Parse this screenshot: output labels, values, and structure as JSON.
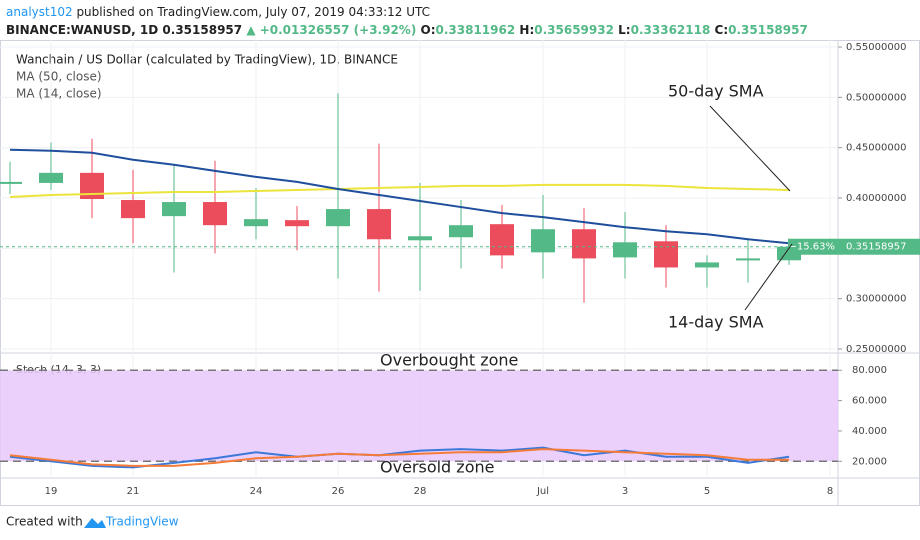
{
  "header": {
    "author": "analyst102",
    "published": "published on TradingView.com, July 07, 2019 04:33:12 UTC",
    "symbol": "BINANCE:WANUSD, 1D",
    "last": "0.35158957",
    "change": "▲ +0.01326557 (+3.92%)",
    "ohlc": [
      {
        "label": "O:",
        "value": "0.33811962"
      },
      {
        "label": "H:",
        "value": "0.35659932"
      },
      {
        "label": "L:",
        "value": "0.33362118"
      },
      {
        "label": "C:",
        "value": "0.35158957"
      }
    ]
  },
  "chart_data": [
    {
      "type": "candlestick",
      "title": "Wanchain / US Dollar (calculated by TradingView), 1D, BINANCE",
      "categories": [
        null,
        "19",
        null,
        "21",
        null,
        null,
        "24",
        null,
        "26",
        null,
        "28",
        null,
        null,
        "Jul",
        null,
        "3",
        null,
        "5",
        null,
        null,
        "8"
      ],
      "open": [
        0.414,
        0.415,
        0.425,
        0.398,
        0.382,
        0.396,
        0.372,
        0.378,
        0.372,
        0.389,
        0.358,
        0.361,
        0.374,
        0.346,
        0.369,
        0.341,
        0.357,
        0.331,
        0.338,
        0.33811962,
        null
      ],
      "high": [
        0.436,
        0.455,
        0.459,
        0.428,
        0.433,
        0.437,
        0.41,
        0.392,
        0.504,
        0.454,
        0.415,
        0.398,
        0.393,
        0.403,
        0.39,
        0.386,
        0.373,
        0.343,
        0.36,
        0.35659932,
        null
      ],
      "low": [
        0.404,
        0.408,
        0.38,
        0.355,
        0.326,
        0.345,
        0.359,
        0.348,
        0.32,
        0.307,
        0.308,
        0.33,
        0.33,
        0.32,
        0.296,
        0.32,
        0.311,
        0.311,
        0.316,
        0.33362118,
        null
      ],
      "close": [
        0.416,
        0.425,
        0.399,
        0.38,
        0.396,
        0.373,
        0.379,
        0.372,
        0.389,
        0.359,
        0.362,
        0.373,
        0.343,
        0.369,
        0.34,
        0.356,
        0.331,
        0.336,
        0.34,
        0.35158957,
        null
      ],
      "up_color": "#53b987",
      "down_color": "#eb4d5c",
      "ylim": [
        0.247,
        0.557
      ],
      "yticks": [
        {
          "value": 0.25,
          "label": "0.25000000"
        },
        {
          "value": 0.3,
          "label": "0.30000000"
        },
        {
          "value": 0.35,
          "label": "0.35000000"
        },
        {
          "value": 0.4,
          "label": "0.40000000"
        },
        {
          "value": 0.45,
          "label": "0.45000000"
        },
        {
          "value": 0.5,
          "label": "0.50000000"
        },
        {
          "value": 0.55,
          "label": "0.55000000"
        }
      ],
      "grid": true,
      "series": [
        {
          "name": "MA (50, close)",
          "color": "#ebe43b",
          "values": [
            0.401,
            0.403,
            0.404,
            0.405,
            0.406,
            0.406,
            0.407,
            0.408,
            0.409,
            0.41,
            0.411,
            0.412,
            0.412,
            0.413,
            0.413,
            0.413,
            0.412,
            0.41,
            0.409,
            0.408,
            null
          ]
        },
        {
          "name": "MA (14, close)",
          "color": "#1f4e9c",
          "values": [
            0.448,
            0.447,
            0.445,
            0.438,
            0.433,
            0.427,
            0.421,
            0.416,
            0.409,
            0.403,
            0.397,
            0.391,
            0.385,
            0.381,
            0.376,
            0.371,
            0.367,
            0.364,
            0.359,
            0.355,
            null
          ]
        }
      ],
      "last_price": {
        "value": 0.35158957,
        "label": "0.35158957",
        "change_label": "−15.63%"
      },
      "annotations": [
        "50-day SMA",
        "14-day SMA"
      ]
    },
    {
      "type": "line",
      "title": "Stoch (14, 3, 3)",
      "ylim": [
        9,
        90.7
      ],
      "yticks": [
        {
          "value": 20,
          "label": "20.000"
        },
        {
          "value": 40,
          "label": "40.000"
        },
        {
          "value": 60,
          "label": "60.000"
        },
        {
          "value": 80,
          "label": "80.000"
        }
      ],
      "band": [
        20,
        80
      ],
      "band_color": "#e8c8fb",
      "series": [
        {
          "color": "#3c78d8",
          "values": [
            23,
            20,
            17,
            16,
            19,
            22,
            26,
            23,
            25,
            24,
            27,
            28,
            27,
            29,
            24,
            27,
            23,
            23,
            19,
            23,
            null
          ]
        },
        {
          "color": "#f57c38",
          "values": [
            24,
            21,
            18,
            17,
            17,
            19,
            22,
            23,
            25,
            24,
            25,
            26,
            26,
            28,
            27,
            26,
            25,
            24,
            21,
            21,
            null
          ]
        }
      ],
      "annotations": [
        "Overbought zone",
        "Oversold zone"
      ]
    }
  ],
  "footer": {
    "created": "Created with",
    "brand": "TradingView"
  }
}
